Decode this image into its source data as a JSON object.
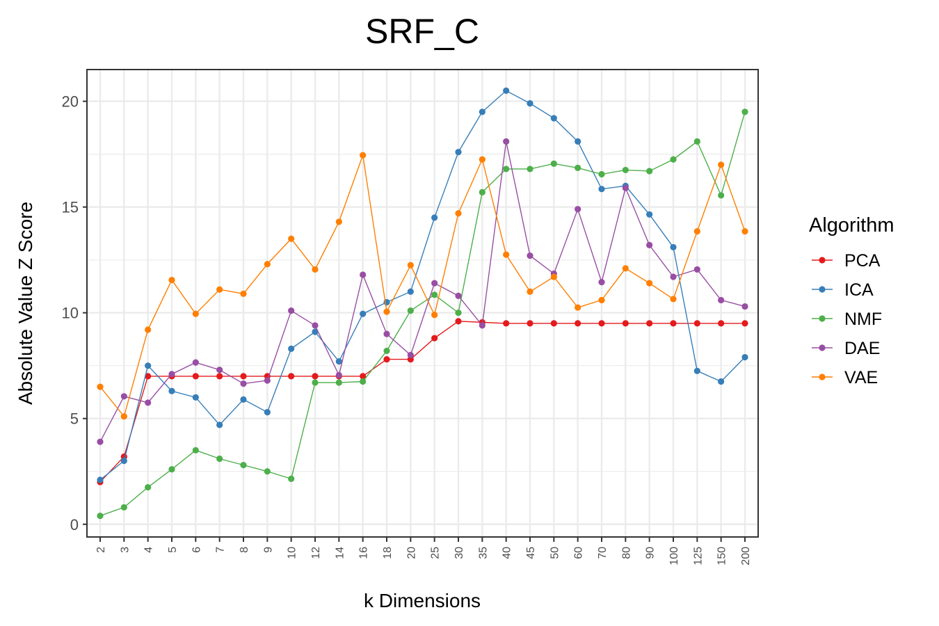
{
  "chart_data": {
    "type": "line",
    "title": "SRF_C",
    "xlabel": "k Dimensions",
    "ylabel": "Absolute Value Z Score",
    "categories": [
      "2",
      "3",
      "4",
      "5",
      "6",
      "7",
      "8",
      "9",
      "10",
      "12",
      "14",
      "16",
      "18",
      "20",
      "25",
      "30",
      "35",
      "40",
      "45",
      "50",
      "60",
      "70",
      "80",
      "90",
      "100",
      "125",
      "150",
      "200"
    ],
    "ylim": [
      -0.6,
      21.5
    ],
    "yticks": [
      0,
      5,
      10,
      15,
      20
    ],
    "grid": true,
    "legend": {
      "title": "Algorithm",
      "position": "right"
    },
    "series": [
      {
        "name": "PCA",
        "color": "#e41a1c",
        "values": [
          2.0,
          3.2,
          7.0,
          7.0,
          7.0,
          7.0,
          7.0,
          7.0,
          7.0,
          7.0,
          7.0,
          7.0,
          7.8,
          7.8,
          8.8,
          9.6,
          9.55,
          9.5,
          9.5,
          9.5,
          9.5,
          9.5,
          9.5,
          9.5,
          9.5,
          9.5,
          9.5,
          9.5
        ]
      },
      {
        "name": "ICA",
        "color": "#377eb8",
        "values": [
          2.1,
          3.0,
          7.5,
          6.3,
          6.0,
          4.7,
          5.9,
          5.3,
          8.3,
          9.1,
          7.7,
          9.95,
          10.5,
          11.0,
          14.5,
          17.6,
          19.5,
          20.5,
          19.9,
          19.2,
          18.1,
          15.85,
          16.0,
          14.65,
          13.1,
          7.25,
          6.75,
          7.9
        ]
      },
      {
        "name": "NMF",
        "color": "#4daf4a",
        "values": [
          0.4,
          0.8,
          1.75,
          2.6,
          3.5,
          3.1,
          2.8,
          2.5,
          2.15,
          6.7,
          6.7,
          6.75,
          8.2,
          10.1,
          10.85,
          10.0,
          15.7,
          16.8,
          16.8,
          17.05,
          16.85,
          16.55,
          16.75,
          16.7,
          17.25,
          18.1,
          15.55,
          19.5
        ]
      },
      {
        "name": "DAE",
        "color": "#984ea3",
        "values": [
          3.9,
          6.05,
          5.75,
          7.1,
          7.65,
          7.3,
          6.65,
          6.8,
          10.1,
          9.4,
          7.05,
          11.8,
          9.0,
          8.0,
          11.4,
          10.8,
          9.4,
          18.1,
          12.7,
          11.85,
          14.9,
          11.45,
          15.9,
          13.2,
          11.7,
          12.05,
          10.6,
          10.3
        ]
      },
      {
        "name": "VAE",
        "color": "#ff7f00",
        "values": [
          6.5,
          5.1,
          9.2,
          11.55,
          9.95,
          11.1,
          10.9,
          12.3,
          13.5,
          12.05,
          14.3,
          17.45,
          10.05,
          12.25,
          9.9,
          14.7,
          17.25,
          12.75,
          11.0,
          11.7,
          10.25,
          10.6,
          12.1,
          11.4,
          10.65,
          13.85,
          17.0,
          13.85
        ]
      }
    ]
  }
}
